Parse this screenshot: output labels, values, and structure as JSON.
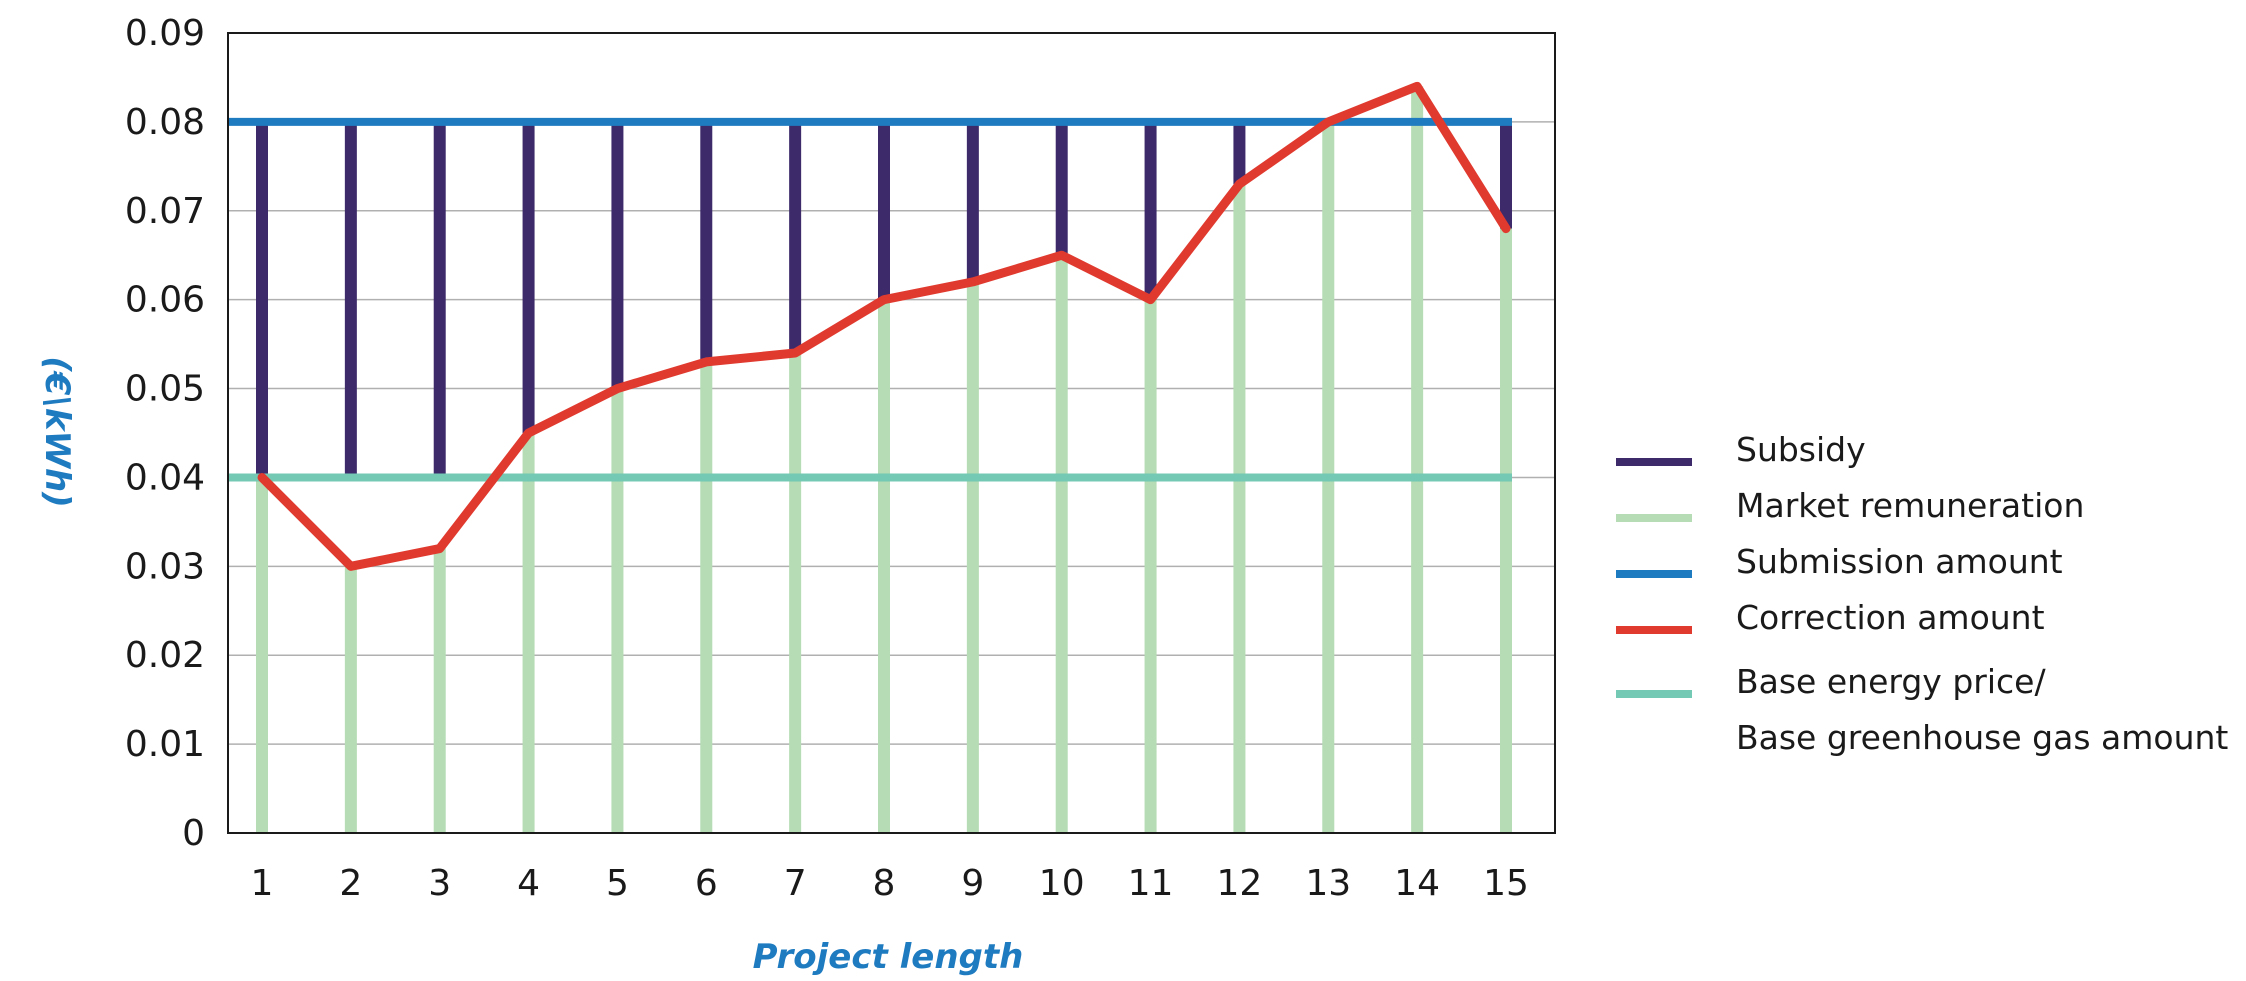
{
  "chart_data": {
    "type": "line",
    "title": "",
    "xlabel": "Project length",
    "ylabel": "(€\\kWh)",
    "ylim": [
      0,
      0.09
    ],
    "yticks": [
      "0",
      "0.01",
      "0.02",
      "0.03",
      "0.04",
      "0.05",
      "0.06",
      "0.07",
      "0.08",
      "0.09"
    ],
    "categories": [
      "1",
      "2",
      "3",
      "4",
      "5",
      "6",
      "7",
      "8",
      "9",
      "10",
      "11",
      "12",
      "13",
      "14",
      "15"
    ],
    "grid": true,
    "legend_position": "right",
    "series": [
      {
        "name": "Subsidy",
        "kind": "vertical-bar-segment",
        "color": "#3d2a6b",
        "from": [
          0.04,
          0.04,
          0.04,
          0.045,
          0.05,
          0.053,
          0.054,
          0.06,
          0.062,
          0.065,
          0.06,
          0.073,
          0.08,
          0.08,
          0.068
        ],
        "to": [
          0.08,
          0.08,
          0.08,
          0.08,
          0.08,
          0.08,
          0.08,
          0.08,
          0.08,
          0.08,
          0.08,
          0.08,
          0.08,
          0.08,
          0.08
        ]
      },
      {
        "name": "Market remuneration",
        "kind": "vertical-bar",
        "color": "#b5dcb4",
        "values": [
          0.04,
          0.03,
          0.032,
          0.045,
          0.05,
          0.053,
          0.054,
          0.06,
          0.062,
          0.065,
          0.06,
          0.073,
          0.08,
          0.084,
          0.068
        ]
      },
      {
        "name": "Submission amount",
        "kind": "hline",
        "color": "#1f7bc0",
        "value": 0.08
      },
      {
        "name": "Correction amount",
        "kind": "line",
        "color": "#e03a2f",
        "values": [
          0.04,
          0.03,
          0.032,
          0.045,
          0.05,
          0.053,
          0.054,
          0.06,
          0.062,
          0.065,
          0.06,
          0.073,
          0.08,
          0.084,
          0.068
        ]
      },
      {
        "name": "Base energy price/",
        "name_line2": "Base greenhouse gas amount",
        "kind": "hline",
        "color": "#74c9b4",
        "value": 0.04
      }
    ]
  },
  "colors": {
    "axis_title": "#1f7bc0",
    "grid": "#b0b0b0",
    "frame": "#1a1a1a"
  }
}
